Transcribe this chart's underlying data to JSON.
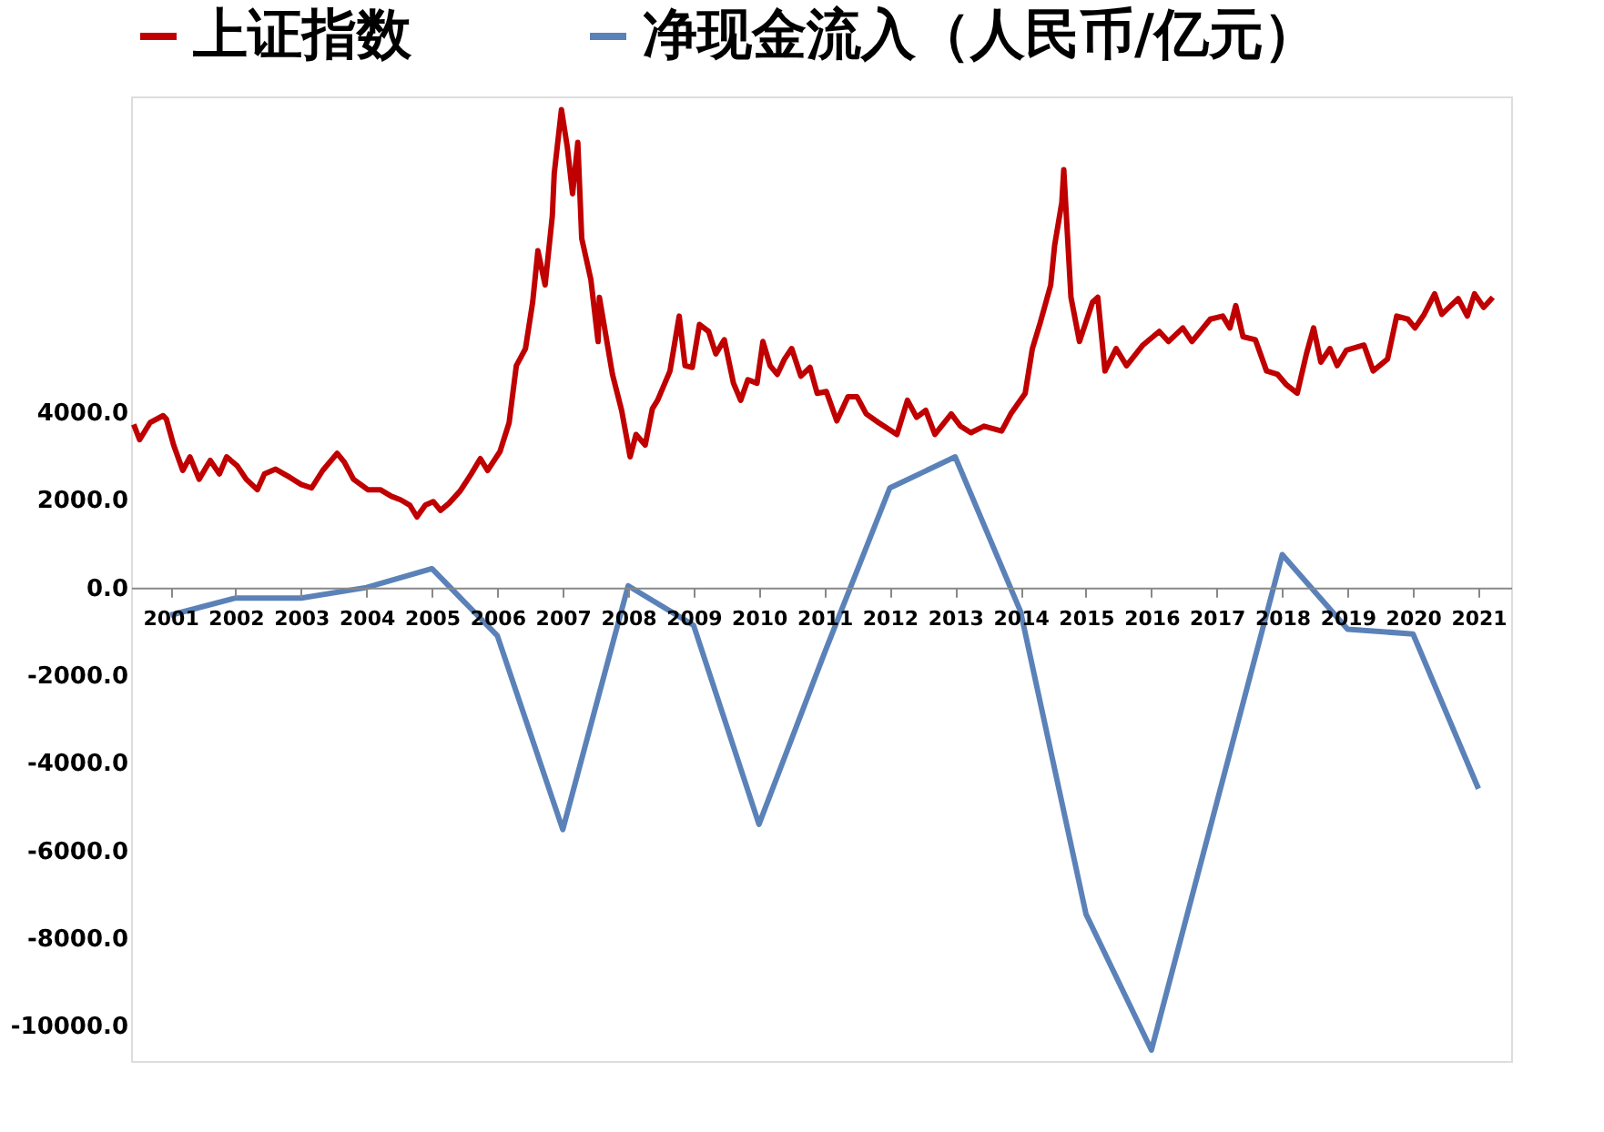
{
  "chart_data": {
    "type": "line",
    "legend": "top",
    "grid": false,
    "marker": "none",
    "line_style": "solid",
    "xlim": [
      2000.4,
      2021.5
    ],
    "xticks": [
      2001,
      2002,
      2003,
      2004,
      2005,
      2006,
      2007,
      2008,
      2009,
      2010,
      2011,
      2012,
      2013,
      2014,
      2015,
      2016,
      2017,
      2018,
      2019,
      2020,
      2021
    ],
    "ylim": [
      -10800,
      11200
    ],
    "yticks": [
      {
        "value": -10000,
        "label": "-10000.0"
      },
      {
        "value": -8000,
        "label": "-8000.0"
      },
      {
        "value": -6000,
        "label": "-6000.0"
      },
      {
        "value": -4000,
        "label": "-4000.0"
      },
      {
        "value": -2000,
        "label": "-2000.0"
      },
      {
        "value": 0,
        "label": "0.0"
      },
      {
        "value": 2000,
        "label": "2000.0"
      },
      {
        "value": 4000,
        "label": "4000.0"
      }
    ],
    "series": [
      {
        "name": "上证指数",
        "color": "#c00000",
        "x": [
          2000.44,
          2000.53,
          2000.69,
          2000.89,
          2000.94,
          2001.05,
          2001.19,
          2001.3,
          2001.44,
          2001.61,
          2001.75,
          2001.86,
          2002.02,
          2002.16,
          2002.33,
          2002.44,
          2002.61,
          2002.83,
          2003.0,
          2003.16,
          2003.33,
          2003.55,
          2003.66,
          2003.8,
          2004.02,
          2004.21,
          2004.38,
          2004.52,
          2004.66,
          2004.77,
          2004.9,
          2005.02,
          2005.13,
          2005.26,
          2005.43,
          2005.6,
          2005.74,
          2005.85,
          2006.04,
          2006.18,
          2006.29,
          2006.43,
          2006.54,
          2006.62,
          2006.73,
          2006.84,
          2006.87,
          2006.98,
          2007.07,
          2007.15,
          2007.23,
          2007.29,
          2007.43,
          2007.54,
          2007.56,
          2007.76,
          2007.9,
          2008.03,
          2008.12,
          2008.26,
          2008.37,
          2008.45,
          2008.64,
          2008.78,
          2008.87,
          2008.98,
          2009.09,
          2009.23,
          2009.34,
          2009.47,
          2009.61,
          2009.72,
          2009.83,
          2009.97,
          2010.06,
          2010.17,
          2010.28,
          2010.39,
          2010.5,
          2010.64,
          2010.78,
          2010.89,
          2011.03,
          2011.19,
          2011.36,
          2011.5,
          2011.64,
          2011.83,
          2012.11,
          2012.27,
          2012.41,
          2012.55,
          2012.69,
          2012.94,
          2013.08,
          2013.24,
          2013.44,
          2013.71,
          2013.85,
          2014.07,
          2014.18,
          2014.3,
          2014.46,
          2014.52,
          2014.63,
          2014.66,
          2014.74,
          2014.77,
          2014.9,
          2015.1,
          2015.18,
          2015.29,
          2015.46,
          2015.62,
          2015.87,
          2016.12,
          2016.26,
          2016.48,
          2016.62,
          2016.9,
          2017.09,
          2017.2,
          2017.29,
          2017.4,
          2017.59,
          2017.76,
          2017.93,
          2018.06,
          2018.23,
          2018.37,
          2018.48,
          2018.59,
          2018.73,
          2018.84,
          2018.98,
          2019.25,
          2019.39,
          2019.61,
          2019.75,
          2019.92,
          2020.03,
          2020.17,
          2020.33,
          2020.44,
          2020.69,
          2020.83,
          2020.94,
          2021.08,
          2021.22
        ],
        "values": [
          3720,
          3370,
          3760,
          3920,
          3840,
          3250,
          2670,
          2980,
          2470,
          2900,
          2590,
          2980,
          2780,
          2470,
          2230,
          2590,
          2700,
          2510,
          2350,
          2270,
          2670,
          3060,
          2860,
          2470,
          2230,
          2230,
          2080,
          2000,
          1880,
          1610,
          1880,
          1960,
          1760,
          1920,
          2200,
          2590,
          2940,
          2670,
          3100,
          3760,
          5060,
          5450,
          6510,
          7680,
          6900,
          8470,
          9450,
          10900,
          10040,
          8980,
          10150,
          7960,
          7020,
          5610,
          6620,
          4860,
          4040,
          2980,
          3490,
          3250,
          4080,
          4270,
          4940,
          6190,
          5060,
          5020,
          6000,
          5840,
          5330,
          5650,
          4660,
          4270,
          4740,
          4660,
          5610,
          5060,
          4860,
          5210,
          5450,
          4820,
          5020,
          4430,
          4470,
          3800,
          4350,
          4350,
          3960,
          3760,
          3490,
          4270,
          3880,
          4040,
          3490,
          3960,
          3680,
          3530,
          3680,
          3570,
          3960,
          4430,
          5450,
          6040,
          6900,
          7800,
          8780,
          9530,
          7410,
          6620,
          5610,
          6510,
          6620,
          4940,
          5450,
          5060,
          5530,
          5840,
          5610,
          5920,
          5610,
          6120,
          6190,
          5920,
          6430,
          5720,
          5650,
          4940,
          4860,
          4630,
          4430,
          5330,
          5920,
          5140,
          5450,
          5060,
          5410,
          5530,
          4940,
          5210,
          6190,
          6120,
          5920,
          6230,
          6700,
          6230,
          6590,
          6190,
          6700,
          6390,
          6620
        ]
      },
      {
        "name": "净现金流入（人民币/亿元）",
        "color": "#5b82b8",
        "x": [
          2001,
          2002,
          2003,
          2004,
          2005,
          2006,
          2007,
          2008,
          2009,
          2010,
          2011,
          2012,
          2013,
          2014,
          2015,
          2016,
          2017,
          2018,
          2019,
          2020,
          2021
        ],
        "values": [
          -630,
          -240,
          -240,
          0,
          430,
          -1100,
          -5520,
          40,
          -860,
          -5400,
          -1500,
          2270,
          2980,
          -550,
          -7450,
          -10550,
          -4900,
          750,
          -950,
          -1060,
          -4590
        ]
      }
    ]
  }
}
